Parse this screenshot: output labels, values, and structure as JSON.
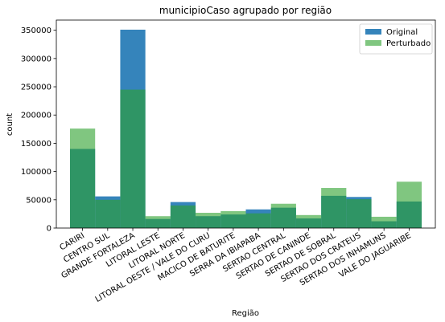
{
  "chart_data": {
    "type": "bar",
    "title": "municipioCaso agrupado por região",
    "xlabel": "Região",
    "ylabel": "count",
    "categories": [
      "CARIRI",
      "CENTRO SUL",
      "GRANDE FORTALEZA",
      "LITORAL LESTE",
      "LITORAL NORTE",
      "LITORAL OESTE / VALE DO CURU",
      "MACICO DE BATURITE",
      "SERRA DA IBIAPABA",
      "SERTAO CENTRAL",
      "SERTAO DE CANINDE",
      "SERTAO DE SOBRAL",
      "SERTAO DOS CRATEUS",
      "SERTAO DOS INHAMUNS",
      "VALE DO JAGUARIBE"
    ],
    "series": [
      {
        "name": "Original",
        "color": "#1f77b4",
        "values": [
          140000,
          56000,
          351000,
          16000,
          46000,
          21000,
          24000,
          33000,
          36000,
          17000,
          57000,
          55000,
          12000,
          47000
        ]
      },
      {
        "name": "Perturbado",
        "color": "#2ca02c",
        "values": [
          176000,
          50000,
          245000,
          21000,
          40000,
          27000,
          30000,
          26000,
          43000,
          23000,
          71000,
          51000,
          20000,
          82000
        ]
      }
    ],
    "ylim": [
      0,
      368000
    ],
    "yticks": [
      0,
      50000,
      100000,
      150000,
      200000,
      250000,
      300000,
      350000
    ],
    "ytick_labels": [
      "0",
      "50000",
      "100000",
      "150000",
      "200000",
      "250000",
      "300000",
      "350000"
    ],
    "legend_position": "top-right",
    "grid": false
  }
}
